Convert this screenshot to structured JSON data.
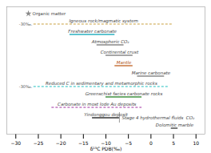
{
  "chart_data": {
    "type": "range",
    "xlabel": "δ¹³C PDB(‰)",
    "xlim": [
      -32,
      12
    ],
    "xticks": [
      -30,
      -25,
      -20,
      -15,
      -10,
      -5,
      0,
      5,
      10
    ],
    "series": [
      {
        "name": "Organic matter",
        "values": [
          -27.2
        ],
        "color": "#888888",
        "marker": "star"
      },
      {
        "name": "Igneous rock/magmatic system",
        "values": [
          -26,
          5
        ],
        "color": "#c8a040",
        "line_style": "dashed",
        "prefix": "-30‰."
      },
      {
        "name": "Freshwater carbonate",
        "values": [
          -18,
          -8
        ],
        "color": "#2ab0c0",
        "line_style": "solid"
      },
      {
        "name": "Atmospheric CO₂",
        "values": [
          -12,
          -6
        ],
        "color": "#888888",
        "line_style": "solid"
      },
      {
        "name": "Continental crust",
        "values": [
          -10,
          -4
        ],
        "color": "#888888",
        "line_style": "solid"
      },
      {
        "name": "Mantle",
        "values": [
          -8,
          -4
        ],
        "color": "#c06020",
        "line_style": "solid",
        "label_color": "#b05010"
      },
      {
        "name": "Marine carbonate",
        "values": [
          -3,
          3
        ],
        "color": "#888888",
        "line_style": "solid"
      },
      {
        "name": "Reduced C in sedimentary and metamorphic rocks",
        "values": [
          -26,
          4
        ],
        "color": "#20c0c0",
        "line_style": "dashed",
        "prefix": "-30‰."
      },
      {
        "name": "Greenschist facies carbonate rocks",
        "values": [
          -10,
          -2
        ],
        "color": "#409040",
        "line_style": "solid"
      },
      {
        "name": "Carbonate in most lode Au deposits",
        "values": [
          -22,
          -2
        ],
        "color": "#a030a0",
        "line_style": "dashed"
      },
      {
        "name": "Yindonggou deposit",
        "values": [
          -13,
          -7
        ],
        "color": "#333333",
        "line_style": "solid",
        "note": "Stage 4 hydrothermal fluids  CO₂"
      },
      {
        "name": "Dolomitic marble",
        "values": [
          4.5,
          6
        ],
        "color": "#333333",
        "line_style": "solid"
      }
    ]
  }
}
